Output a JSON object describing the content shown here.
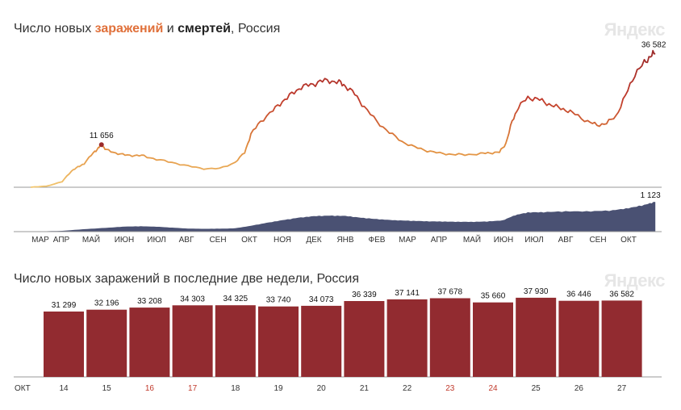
{
  "header": {
    "title_prefix": "Число новых ",
    "title_infections": "заражений",
    "title_and": " и ",
    "title_deaths": "смертей",
    "title_suffix": ", Россия",
    "logo": "Яндекс"
  },
  "bars_header": {
    "title": "Число новых заражений в последние две недели, Россия",
    "logo": "Яндекс"
  },
  "colors": {
    "line_low": "#f2c66e",
    "line_mid": "#e08a3c",
    "line_high": "#c0392b",
    "line_peak": "#9b2a2a",
    "deaths_area": "#4a5173",
    "bars": "#922b30",
    "weekend": "#c0392b"
  },
  "chart_data": [
    {
      "type": "line",
      "title": "",
      "series_name": "",
      "x_tick_labels": [
        "МАР",
        "АПР",
        "МАЙ",
        "ИЮН",
        "ИЮЛ",
        "АВГ",
        "СЕН",
        "ОКТ",
        "НОЯ",
        "ДЕК",
        "ЯНВ",
        "ФЕВ",
        "МАР",
        "АПР",
        "МАЙ",
        "ИЮН",
        "ИЮЛ",
        "АВГ",
        "СЕН",
        "ОКТ"
      ],
      "x_ticks": [
        0,
        1,
        2,
        3,
        4,
        5,
        6,
        7,
        8,
        9,
        10,
        11,
        12,
        13,
        14,
        15,
        16,
        17,
        18,
        19
      ],
      "x_range": [
        0,
        20.0
      ],
      "y_range": [
        0,
        38000
      ],
      "points": [
        [
          0,
          0
        ],
        [
          0.5,
          300
        ],
        [
          1.0,
          1500
        ],
        [
          1.3,
          4500
        ],
        [
          1.5,
          5500
        ],
        [
          1.7,
          6500
        ],
        [
          2.0,
          9500
        ],
        [
          2.15,
          10700
        ],
        [
          2.25,
          11656
        ],
        [
          2.4,
          10200
        ],
        [
          2.7,
          9400
        ],
        [
          3.0,
          8800
        ],
        [
          3.3,
          8700
        ],
        [
          3.6,
          8600
        ],
        [
          4.0,
          7600
        ],
        [
          4.5,
          6800
        ],
        [
          5.0,
          5800
        ],
        [
          5.5,
          5100
        ],
        [
          6.0,
          5100
        ],
        [
          6.5,
          6800
        ],
        [
          6.8,
          9500
        ],
        [
          7.0,
          14500
        ],
        [
          7.3,
          18000
        ],
        [
          7.7,
          21000
        ],
        [
          8.0,
          23500
        ],
        [
          8.3,
          25500
        ],
        [
          8.6,
          27500
        ],
        [
          8.9,
          28000
        ],
        [
          9.2,
          29000
        ],
        [
          9.5,
          29200
        ],
        [
          9.8,
          28700
        ],
        [
          10.0,
          27800
        ],
        [
          10.3,
          25500
        ],
        [
          10.6,
          22000
        ],
        [
          11.0,
          18000
        ],
        [
          11.4,
          15000
        ],
        [
          11.8,
          12500
        ],
        [
          12.2,
          11000
        ],
        [
          12.6,
          10000
        ],
        [
          13.0,
          9300
        ],
        [
          13.4,
          9000
        ],
        [
          13.8,
          8900
        ],
        [
          14.3,
          9200
        ],
        [
          14.6,
          9400
        ],
        [
          14.9,
          9600
        ],
        [
          15.1,
          12000
        ],
        [
          15.3,
          18000
        ],
        [
          15.5,
          22000
        ],
        [
          15.8,
          24500
        ],
        [
          16.1,
          24200
        ],
        [
          16.4,
          23000
        ],
        [
          16.7,
          22000
        ],
        [
          17.0,
          21200
        ],
        [
          17.3,
          20000
        ],
        [
          17.7,
          18000
        ],
        [
          18.0,
          17000
        ],
        [
          18.3,
          17500
        ],
        [
          18.6,
          19500
        ],
        [
          18.9,
          25000
        ],
        [
          19.2,
          31000
        ],
        [
          19.5,
          34000
        ],
        [
          19.7,
          36000
        ],
        [
          19.85,
          36582
        ]
      ],
      "peak_label": "11 656",
      "last_label": "36 582"
    },
    {
      "type": "area",
      "series_name": "",
      "x_range": [
        0,
        20.0
      ],
      "y_range": [
        0,
        1150
      ],
      "points": [
        [
          0,
          0
        ],
        [
          1.0,
          30
        ],
        [
          1.8,
          100
        ],
        [
          2.5,
          150
        ],
        [
          3.0,
          190
        ],
        [
          3.5,
          200
        ],
        [
          4.0,
          185
        ],
        [
          4.5,
          150
        ],
        [
          5.0,
          115
        ],
        [
          5.5,
          105
        ],
        [
          6.0,
          110
        ],
        [
          6.5,
          125
        ],
        [
          7.0,
          220
        ],
        [
          7.5,
          330
        ],
        [
          8.0,
          430
        ],
        [
          8.5,
          520
        ],
        [
          9.0,
          580
        ],
        [
          9.5,
          600
        ],
        [
          10.0,
          590
        ],
        [
          10.5,
          520
        ],
        [
          11.0,
          470
        ],
        [
          11.5,
          430
        ],
        [
          12.0,
          410
        ],
        [
          12.5,
          390
        ],
        [
          13.0,
          380
        ],
        [
          13.5,
          370
        ],
        [
          14.0,
          365
        ],
        [
          14.5,
          380
        ],
        [
          15.0,
          420
        ],
        [
          15.4,
          620
        ],
        [
          15.8,
          720
        ],
        [
          16.3,
          730
        ],
        [
          17.0,
          760
        ],
        [
          17.8,
          760
        ],
        [
          18.5,
          800
        ],
        [
          19.0,
          880
        ],
        [
          19.5,
          1000
        ],
        [
          19.85,
          1123
        ]
      ],
      "last_label": "1 123"
    },
    {
      "type": "bar",
      "title": "",
      "month_label": "ОКТ",
      "categories": [
        "14",
        "15",
        "16",
        "17",
        "18",
        "19",
        "20",
        "21",
        "22",
        "23",
        "24",
        "25",
        "26",
        "27"
      ],
      "weekend": [
        false,
        false,
        true,
        true,
        false,
        false,
        false,
        false,
        false,
        true,
        true,
        false,
        false,
        false
      ],
      "values": [
        31299,
        32196,
        33208,
        34303,
        34325,
        33740,
        34073,
        36339,
        37141,
        37678,
        35660,
        37930,
        36446,
        36582
      ],
      "value_labels": [
        "31 299",
        "32 196",
        "33 208",
        "34 303",
        "34 325",
        "33 740",
        "34 073",
        "36 339",
        "37 141",
        "37 678",
        "35 660",
        "37 930",
        "36 446",
        "36 582"
      ],
      "ylim": [
        0,
        46000
      ]
    }
  ]
}
